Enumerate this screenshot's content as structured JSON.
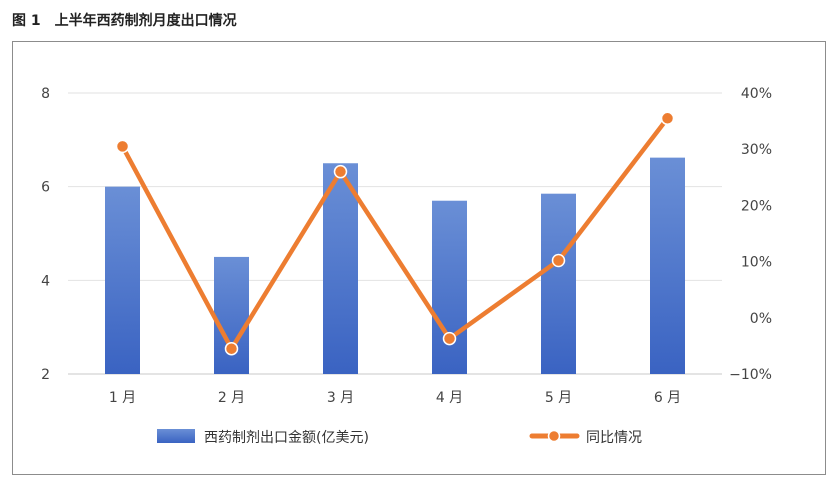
{
  "figure_title": "图 1　上半年西药制剂月度出口情况",
  "chart_data": {
    "type": "bar",
    "categories": [
      "1 月",
      "2 月",
      "3 月",
      "4 月",
      "5 月",
      "6 月"
    ],
    "series": [
      {
        "name": "西药制剂出口金额(亿美元)",
        "type": "bar",
        "axis": "left",
        "color": "#4472C4",
        "values": [
          6.0,
          4.5,
          6.5,
          5.7,
          5.85,
          6.62
        ]
      },
      {
        "name": "同比情况",
        "type": "line",
        "axis": "right",
        "color": "#ED7D31",
        "values": [
          30.5,
          -5.5,
          26.0,
          -3.7,
          10.2,
          35.5
        ]
      }
    ],
    "y_left": {
      "min": 2,
      "max": 8,
      "ticks": [
        "8",
        "6",
        "4",
        "2"
      ]
    },
    "y_right": {
      "min": -10,
      "max": 40,
      "ticks": [
        "40%",
        "30%",
        "20%",
        "10%",
        "0%",
        "−10%"
      ]
    },
    "grid": true,
    "legend_position": "bottom"
  }
}
